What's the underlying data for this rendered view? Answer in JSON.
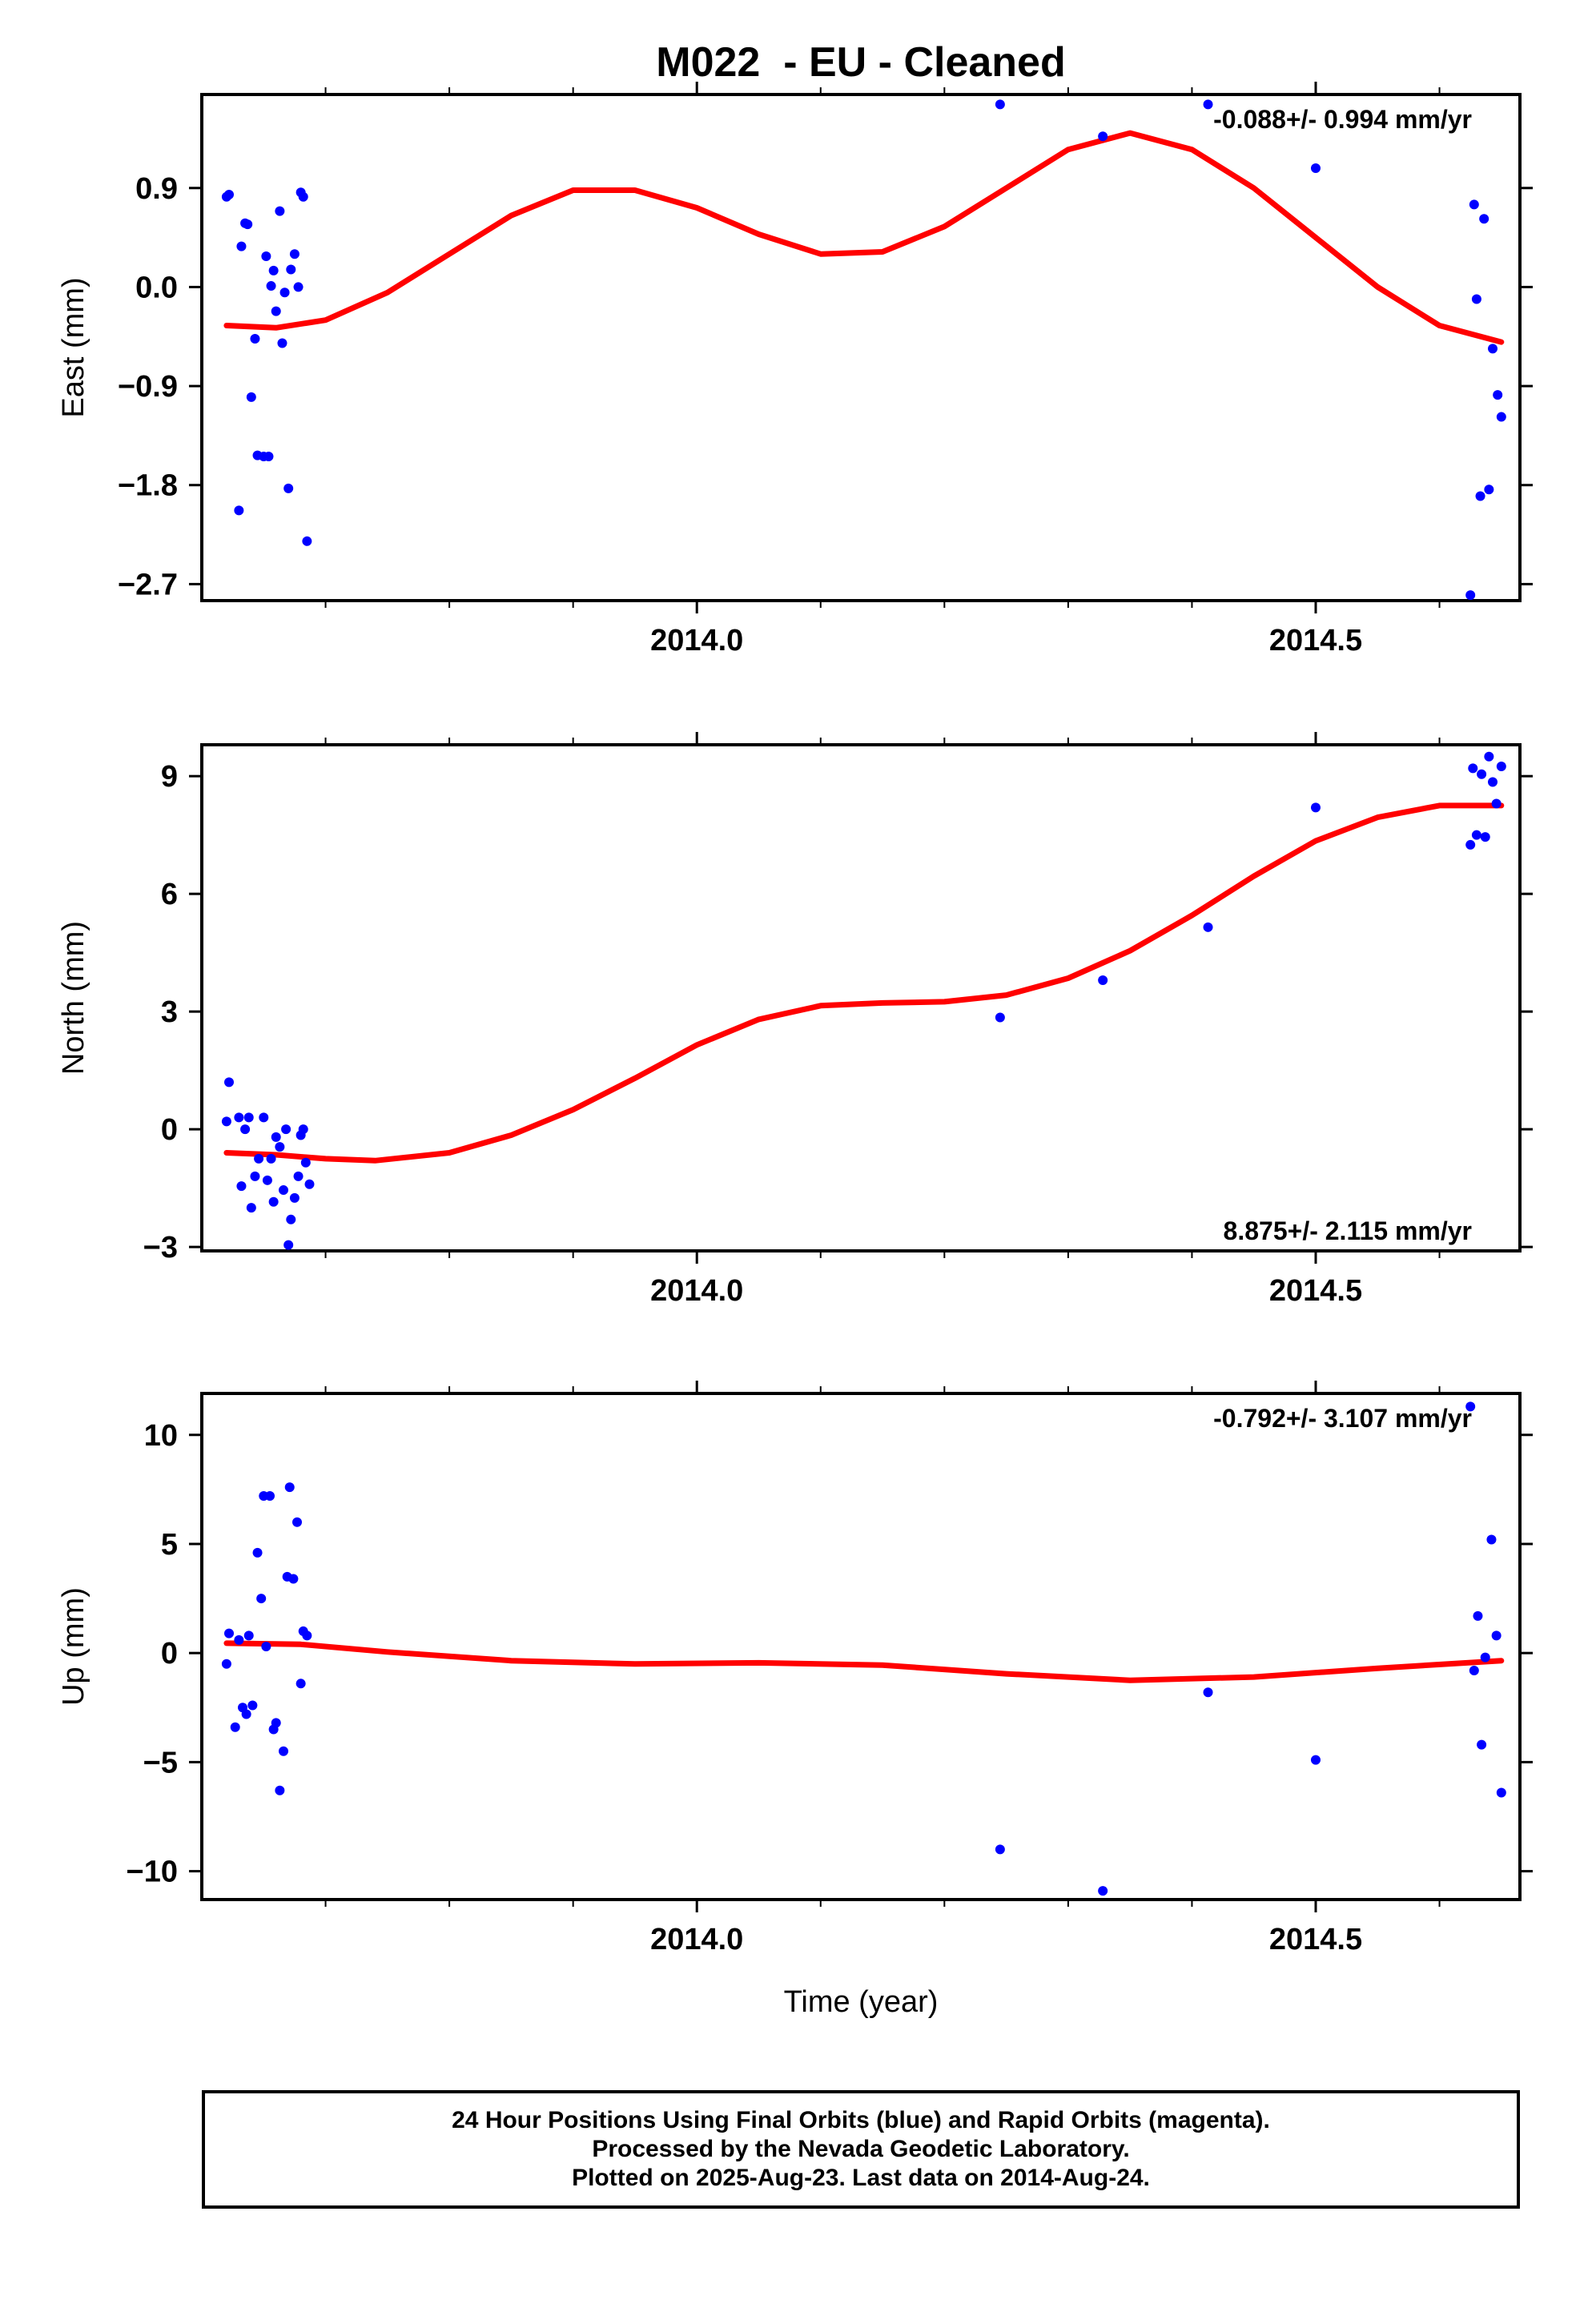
{
  "title": "M022  - EU - Cleaned",
  "xlabel": "Time (year)",
  "footer": {
    "line1": "24 Hour Positions Using Final Orbits (blue) and Rapid Orbits (magenta).",
    "line2": "Processed by the Nevada Geodetic Laboratory.",
    "line3": "Plotted on 2025-Aug-23. Last data on 2014-Aug-24."
  },
  "colors": {
    "data_points": "#0000ff",
    "fit_line": "#ff0000",
    "axes": "#000000"
  },
  "chart_data": [
    {
      "type": "scatter",
      "panel": "east",
      "ylabel": "East (mm)",
      "rate_label": "-0.088+/- 0.994 mm/yr",
      "xlim": [
        2013.6,
        2014.665
      ],
      "ylim": [
        -2.85,
        1.75
      ],
      "xticks": [
        2014.0,
        2014.5
      ],
      "xtick_labels": [
        "2014.0",
        "2014.5"
      ],
      "yticks": [
        -2.7,
        -1.8,
        -0.9,
        0.0,
        0.9
      ],
      "ytick_labels": [
        "−2.7",
        "−1.8",
        "−0.9",
        "0.0",
        "0.9"
      ],
      "points": [
        [
          2013.62,
          0.82
        ],
        [
          2013.622,
          0.84
        ],
        [
          2013.63,
          -2.03
        ],
        [
          2013.632,
          0.37
        ],
        [
          2013.635,
          0.58
        ],
        [
          2013.637,
          0.57
        ],
        [
          2013.64,
          -1.0
        ],
        [
          2013.643,
          -0.47
        ],
        [
          2013.645,
          -1.53
        ],
        [
          2013.65,
          -1.54
        ],
        [
          2013.652,
          0.28
        ],
        [
          2013.654,
          -1.54
        ],
        [
          2013.656,
          0.01
        ],
        [
          2013.658,
          0.15
        ],
        [
          2013.66,
          -0.22
        ],
        [
          2013.663,
          0.69
        ],
        [
          2013.665,
          -0.51
        ],
        [
          2013.667,
          -0.05
        ],
        [
          2013.67,
          -1.83
        ],
        [
          2013.672,
          0.16
        ],
        [
          2013.675,
          0.3
        ],
        [
          2013.678,
          0.0
        ],
        [
          2013.68,
          0.86
        ],
        [
          2013.682,
          0.82
        ],
        [
          2013.685,
          -2.31
        ],
        [
          2014.245,
          1.66
        ],
        [
          2014.328,
          1.37
        ],
        [
          2014.413,
          1.66
        ],
        [
          2014.5,
          1.08
        ],
        [
          2014.625,
          -2.8
        ],
        [
          2014.628,
          0.75
        ],
        [
          2014.63,
          -0.11
        ],
        [
          2014.633,
          -1.9
        ],
        [
          2014.636,
          0.62
        ],
        [
          2014.64,
          -1.84
        ],
        [
          2014.643,
          -0.56
        ],
        [
          2014.647,
          -0.98
        ],
        [
          2014.65,
          -1.18
        ]
      ],
      "fit": [
        [
          2013.62,
          -0.35
        ],
        [
          2013.66,
          -0.37
        ],
        [
          2013.7,
          -0.3
        ],
        [
          2013.75,
          -0.05
        ],
        [
          2013.8,
          0.3
        ],
        [
          2013.85,
          0.65
        ],
        [
          2013.9,
          0.88
        ],
        [
          2013.95,
          0.88
        ],
        [
          2014.0,
          0.72
        ],
        [
          2014.05,
          0.48
        ],
        [
          2014.1,
          0.3
        ],
        [
          2014.15,
          0.32
        ],
        [
          2014.2,
          0.55
        ],
        [
          2014.25,
          0.9
        ],
        [
          2014.3,
          1.25
        ],
        [
          2014.35,
          1.4
        ],
        [
          2014.4,
          1.25
        ],
        [
          2014.45,
          0.9
        ],
        [
          2014.5,
          0.45
        ],
        [
          2014.55,
          0.0
        ],
        [
          2014.6,
          -0.35
        ],
        [
          2014.65,
          -0.5
        ]
      ]
    },
    {
      "type": "scatter",
      "panel": "north",
      "ylabel": "North (mm)",
      "rate_label": "8.875+/- 2.115 mm/yr",
      "xlim": [
        2013.6,
        2014.665
      ],
      "ylim": [
        -3.1,
        9.8
      ],
      "xticks": [
        2014.0,
        2014.5
      ],
      "xtick_labels": [
        "2014.0",
        "2014.5"
      ],
      "yticks": [
        -3,
        0,
        3,
        6,
        9
      ],
      "ytick_labels": [
        "−3",
        "0",
        "3",
        "6",
        "9"
      ],
      "points": [
        [
          2013.62,
          0.2
        ],
        [
          2013.622,
          1.2
        ],
        [
          2013.63,
          0.3
        ],
        [
          2013.632,
          -1.45
        ],
        [
          2013.635,
          0.0
        ],
        [
          2013.638,
          0.3
        ],
        [
          2013.64,
          -2.0
        ],
        [
          2013.643,
          -1.2
        ],
        [
          2013.646,
          -0.75
        ],
        [
          2013.65,
          0.3
        ],
        [
          2013.653,
          -1.3
        ],
        [
          2013.656,
          -0.75
        ],
        [
          2013.658,
          -1.85
        ],
        [
          2013.66,
          -0.2
        ],
        [
          2013.663,
          -0.45
        ],
        [
          2013.666,
          -1.55
        ],
        [
          2013.668,
          0.0
        ],
        [
          2013.67,
          -2.95
        ],
        [
          2013.672,
          -2.3
        ],
        [
          2013.675,
          -1.75
        ],
        [
          2013.678,
          -1.2
        ],
        [
          2013.68,
          -0.15
        ],
        [
          2013.682,
          0.0
        ],
        [
          2013.684,
          -0.85
        ],
        [
          2013.687,
          -1.4
        ],
        [
          2014.245,
          2.85
        ],
        [
          2014.328,
          3.8
        ],
        [
          2014.413,
          5.15
        ],
        [
          2014.5,
          8.2
        ],
        [
          2014.625,
          7.25
        ],
        [
          2014.627,
          9.2
        ],
        [
          2014.63,
          7.5
        ],
        [
          2014.634,
          9.05
        ],
        [
          2014.637,
          7.45
        ],
        [
          2014.64,
          9.5
        ],
        [
          2014.643,
          8.85
        ],
        [
          2014.646,
          8.3
        ],
        [
          2014.65,
          9.25
        ]
      ],
      "fit": [
        [
          2013.62,
          -0.6
        ],
        [
          2013.66,
          -0.65
        ],
        [
          2013.7,
          -0.75
        ],
        [
          2013.74,
          -0.8
        ],
        [
          2013.8,
          -0.6
        ],
        [
          2013.85,
          -0.15
        ],
        [
          2013.9,
          0.5
        ],
        [
          2013.95,
          1.3
        ],
        [
          2014.0,
          2.15
        ],
        [
          2014.05,
          2.8
        ],
        [
          2014.1,
          3.15
        ],
        [
          2014.15,
          3.22
        ],
        [
          2014.2,
          3.25
        ],
        [
          2014.25,
          3.42
        ],
        [
          2014.3,
          3.85
        ],
        [
          2014.35,
          4.55
        ],
        [
          2014.4,
          5.45
        ],
        [
          2014.45,
          6.45
        ],
        [
          2014.5,
          7.35
        ],
        [
          2014.55,
          7.95
        ],
        [
          2014.6,
          8.25
        ],
        [
          2014.65,
          8.25
        ]
      ]
    },
    {
      "type": "scatter",
      "panel": "up",
      "ylabel": "Up (mm)",
      "rate_label": "-0.792+/- 3.107 mm/yr",
      "xlim": [
        2013.6,
        2014.665
      ],
      "ylim": [
        -11.3,
        11.9
      ],
      "xticks": [
        2014.0,
        2014.5
      ],
      "xtick_labels": [
        "2014.0",
        "2014.5"
      ],
      "yticks": [
        -10,
        -5,
        0,
        5,
        10
      ],
      "ytick_labels": [
        "−10",
        "−5",
        "0",
        "5",
        "10"
      ],
      "points": [
        [
          2013.62,
          -0.5
        ],
        [
          2013.622,
          0.9
        ],
        [
          2013.627,
          -3.4
        ],
        [
          2013.63,
          0.6
        ],
        [
          2013.633,
          -2.5
        ],
        [
          2013.636,
          -2.8
        ],
        [
          2013.638,
          0.8
        ],
        [
          2013.641,
          -2.4
        ],
        [
          2013.645,
          4.6
        ],
        [
          2013.648,
          2.5
        ],
        [
          2013.65,
          7.2
        ],
        [
          2013.652,
          0.3
        ],
        [
          2013.655,
          7.2
        ],
        [
          2013.658,
          -3.5
        ],
        [
          2013.66,
          -3.2
        ],
        [
          2013.663,
          -6.3
        ],
        [
          2013.666,
          -4.5
        ],
        [
          2013.669,
          3.5
        ],
        [
          2013.671,
          7.6
        ],
        [
          2013.674,
          3.4
        ],
        [
          2013.677,
          6.0
        ],
        [
          2013.68,
          -1.4
        ],
        [
          2013.682,
          1.0
        ],
        [
          2013.685,
          0.8
        ],
        [
          2014.245,
          -9.0
        ],
        [
          2014.328,
          -10.9
        ],
        [
          2014.413,
          -1.8
        ],
        [
          2014.5,
          -4.9
        ],
        [
          2014.625,
          11.3
        ],
        [
          2014.628,
          -0.8
        ],
        [
          2014.631,
          1.7
        ],
        [
          2014.634,
          -4.2
        ],
        [
          2014.637,
          -0.2
        ],
        [
          2014.642,
          5.2
        ],
        [
          2014.646,
          0.8
        ],
        [
          2014.65,
          -6.4
        ]
      ],
      "fit": [
        [
          2013.62,
          0.45
        ],
        [
          2013.68,
          0.4
        ],
        [
          2013.75,
          0.05
        ],
        [
          2013.85,
          -0.35
        ],
        [
          2013.95,
          -0.5
        ],
        [
          2014.05,
          -0.45
        ],
        [
          2014.15,
          -0.55
        ],
        [
          2014.25,
          -0.95
        ],
        [
          2014.35,
          -1.25
        ],
        [
          2014.45,
          -1.1
        ],
        [
          2014.55,
          -0.7
        ],
        [
          2014.65,
          -0.35
        ]
      ]
    }
  ]
}
